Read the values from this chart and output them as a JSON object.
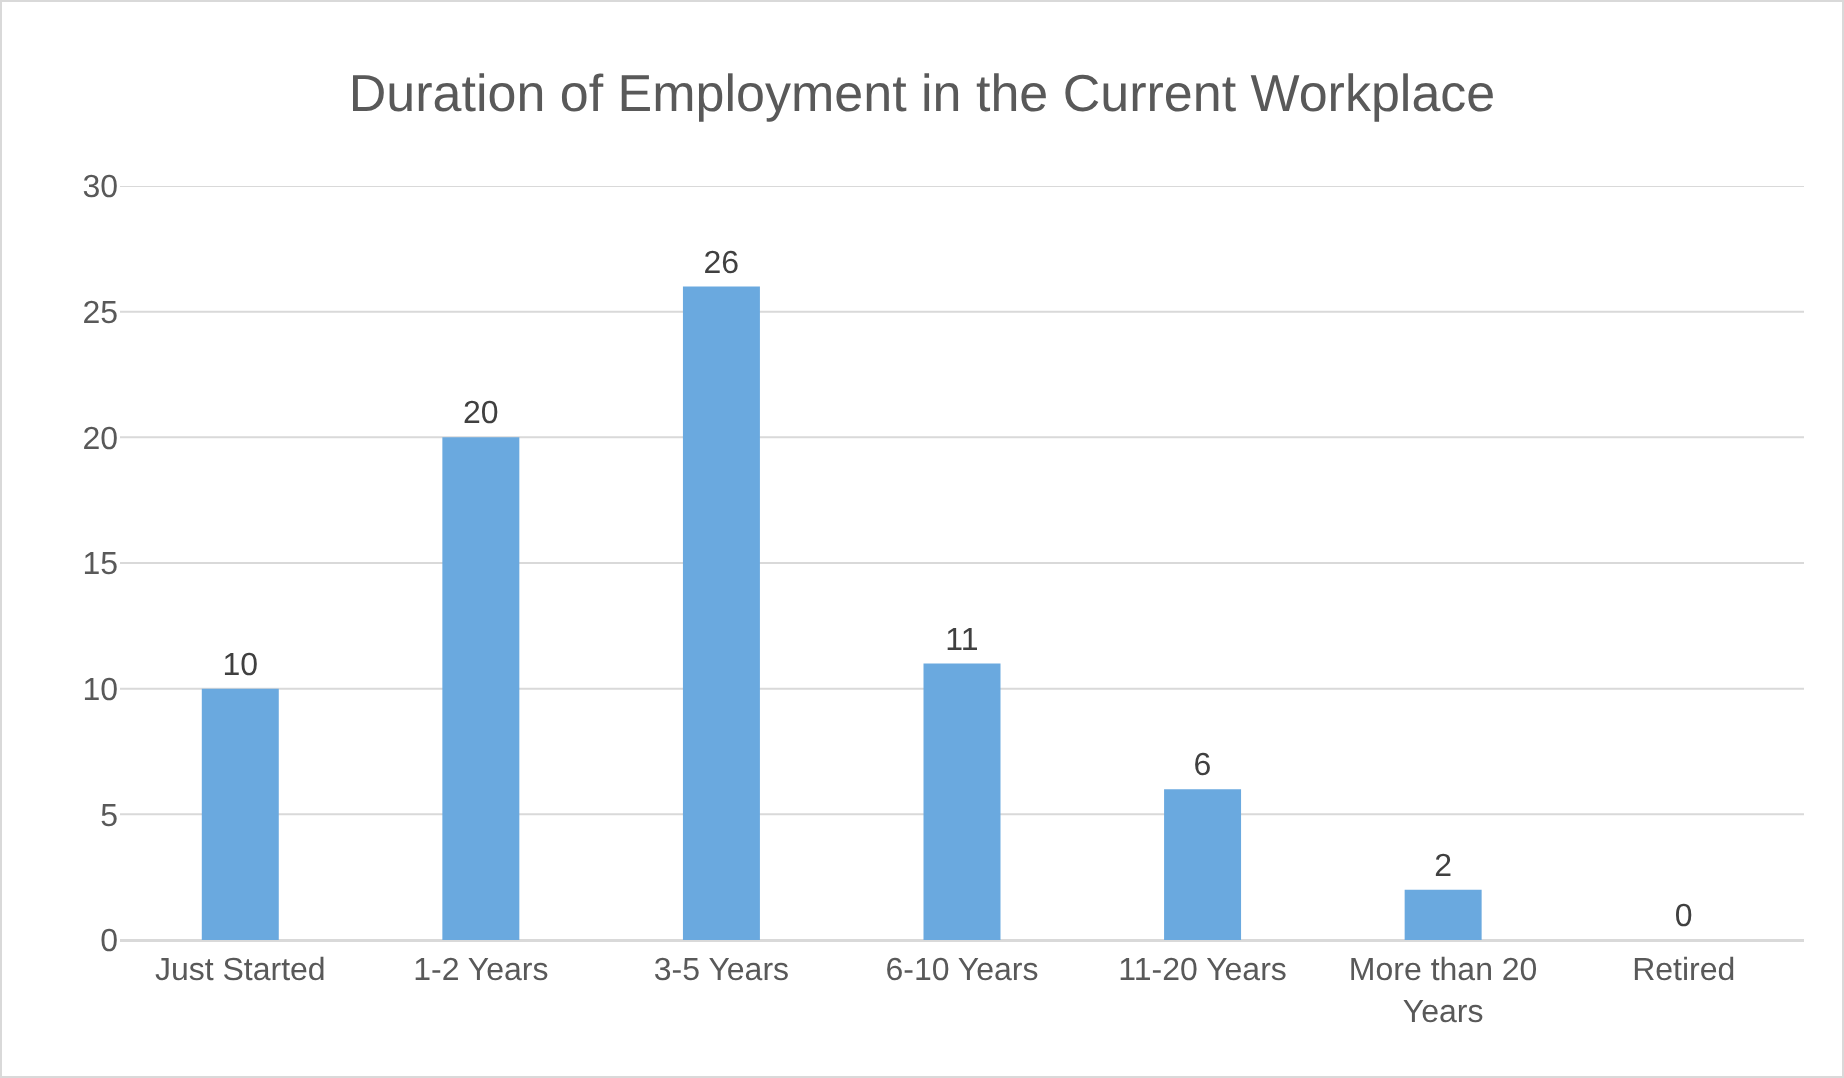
{
  "chart_data": {
    "type": "bar",
    "title": "Duration of Employment in the Current Workplace",
    "categories": [
      "Just Started",
      "1-2 Years",
      "3-5 Years",
      "6-10 Years",
      "11-20 Years",
      "More than 20 Years",
      "Retired"
    ],
    "values": [
      10,
      20,
      26,
      11,
      6,
      2,
      0
    ],
    "color": "#6aa9df",
    "ylim": [
      0,
      30
    ],
    "yticks": [
      0,
      5,
      10,
      15,
      20,
      25,
      30
    ],
    "grid": "y",
    "data_labels": true
  }
}
